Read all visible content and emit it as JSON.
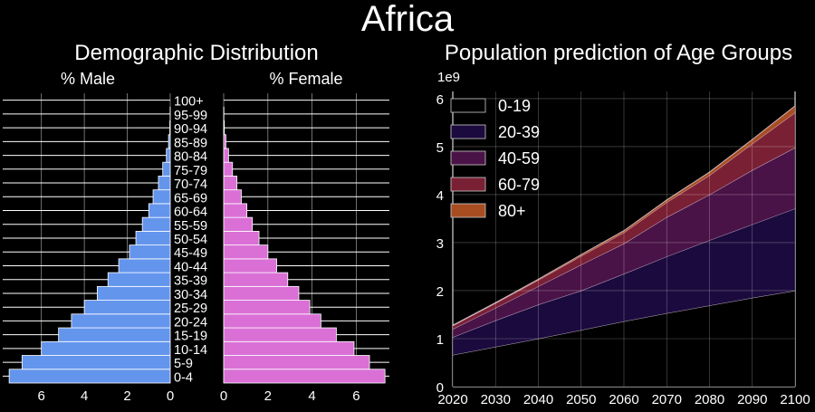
{
  "title": "Africa",
  "chart_data": [
    {
      "type": "bar",
      "orientation": "horizontal",
      "title": "Demographic Distribution",
      "categories": [
        "0-4",
        "5-9",
        "10-14",
        "15-19",
        "20-24",
        "25-29",
        "30-34",
        "35-39",
        "40-44",
        "45-49",
        "50-54",
        "55-59",
        "60-64",
        "65-69",
        "70-74",
        "75-79",
        "80-84",
        "85-89",
        "90-94",
        "95-99",
        "100+"
      ],
      "series": [
        {
          "name": "% Male",
          "color": "#6495ed",
          "xlim": [
            0,
            7.8
          ],
          "ticks": [
            6,
            4,
            2,
            0
          ],
          "values": [
            7.5,
            6.9,
            6.0,
            5.2,
            4.6,
            4.0,
            3.4,
            2.9,
            2.4,
            1.9,
            1.6,
            1.3,
            1.0,
            0.8,
            0.55,
            0.35,
            0.18,
            0.08,
            0.02,
            0.005,
            0.0
          ]
        },
        {
          "name": "% Female",
          "color": "#da70d6",
          "xlim": [
            0,
            7.5
          ],
          "ticks": [
            0,
            2,
            4,
            6
          ],
          "values": [
            7.3,
            6.6,
            5.9,
            5.1,
            4.4,
            3.9,
            3.4,
            2.9,
            2.4,
            2.0,
            1.6,
            1.3,
            1.05,
            0.8,
            0.6,
            0.4,
            0.22,
            0.1,
            0.03,
            0.01,
            0.0
          ]
        }
      ],
      "grid": true
    },
    {
      "type": "area",
      "stacked": true,
      "title": "Population prediction of Age Groups",
      "scale_label": "1e9",
      "x": [
        2020,
        2030,
        2040,
        2050,
        2060,
        2070,
        2080,
        2090,
        2100
      ],
      "xlim": [
        2020,
        2100
      ],
      "ylim": [
        0,
        6.15
      ],
      "yticks": [
        0,
        1,
        2,
        3,
        4,
        5,
        6
      ],
      "legend_position": "top-left",
      "grid": true,
      "series": [
        {
          "name": "0-19",
          "color": "#000000",
          "values": [
            0.66,
            0.83,
            1.0,
            1.18,
            1.36,
            1.53,
            1.69,
            1.85,
            2.0
          ]
        },
        {
          "name": "20-39",
          "color": "#1b0a3d",
          "values": [
            0.37,
            0.55,
            0.71,
            0.82,
            0.99,
            1.18,
            1.36,
            1.53,
            1.71
          ]
        },
        {
          "name": "40-59",
          "color": "#4a1347",
          "values": [
            0.17,
            0.26,
            0.38,
            0.54,
            0.63,
            0.82,
            0.95,
            1.13,
            1.27
          ]
        },
        {
          "name": "60-79",
          "color": "#7a2035",
          "values": [
            0.07,
            0.1,
            0.13,
            0.18,
            0.23,
            0.31,
            0.4,
            0.55,
            0.73
          ]
        },
        {
          "name": "80+",
          "color": "#a84d22",
          "values": [
            0.01,
            0.01,
            0.02,
            0.03,
            0.04,
            0.05,
            0.07,
            0.09,
            0.14
          ]
        }
      ]
    }
  ]
}
